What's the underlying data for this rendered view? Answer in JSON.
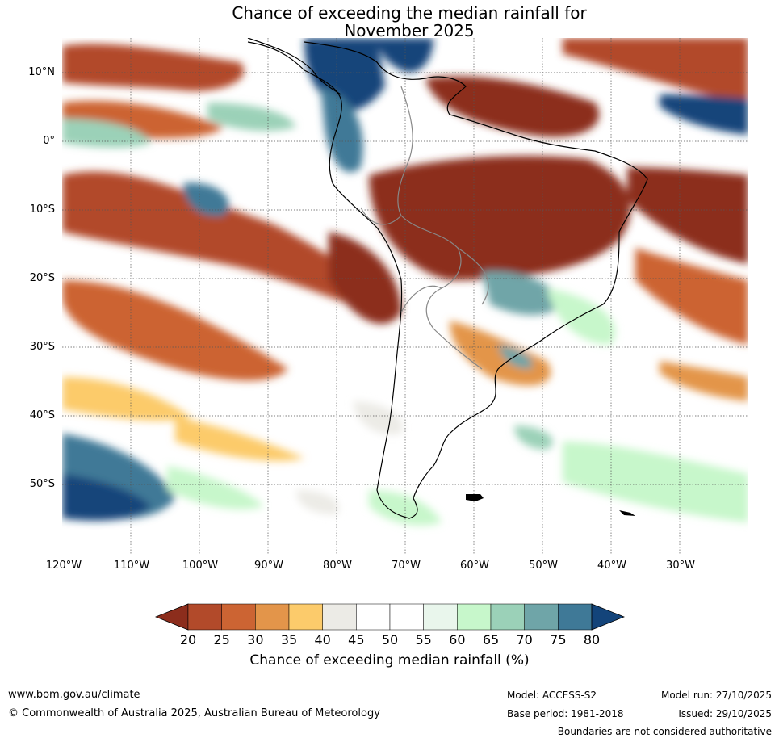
{
  "title_line1": "Chance of exceeding the median rainfall for",
  "title_line2": "November 2025",
  "map": {
    "lat_labels": [
      "10°N",
      "0°",
      "10°S",
      "20°S",
      "30°S",
      "40°S",
      "50°S"
    ],
    "lon_labels": [
      "120°W",
      "110°W",
      "100°W",
      "90°W",
      "80°W",
      "70°W",
      "60°W",
      "50°W",
      "40°W",
      "30°W"
    ],
    "extent": {
      "lon_min": -120,
      "lon_max": -20,
      "lat_min": -60,
      "lat_max": 15
    }
  },
  "colorbar": {
    "ticks": [
      "20",
      "25",
      "30",
      "35",
      "40",
      "45",
      "50",
      "55",
      "60",
      "65",
      "70",
      "75",
      "80"
    ],
    "colors": [
      "#8c2d1c",
      "#b24a2a",
      "#cc6433",
      "#e3954a",
      "#fccb6b",
      "#ecebe6",
      "#ffffff",
      "#ffffff",
      "#e9f6ec",
      "#c7f7cb",
      "#9bd1b8",
      "#6fa5a8",
      "#3f7997",
      "#13447a"
    ],
    "label": "Chance of exceeding median rainfall (%)"
  },
  "footer": {
    "website": "www.bom.gov.au/climate",
    "copyright": "© Commonwealth of Australia 2025, Australian Bureau of Meteorology",
    "model": "Model: ACCESS-S2",
    "base_period": "Base period: 1981-2018",
    "model_run": "Model run: 27/10/2025",
    "issued": "Issued: 29/10/2025",
    "disclaimer": "Boundaries are not considered authoritative"
  }
}
